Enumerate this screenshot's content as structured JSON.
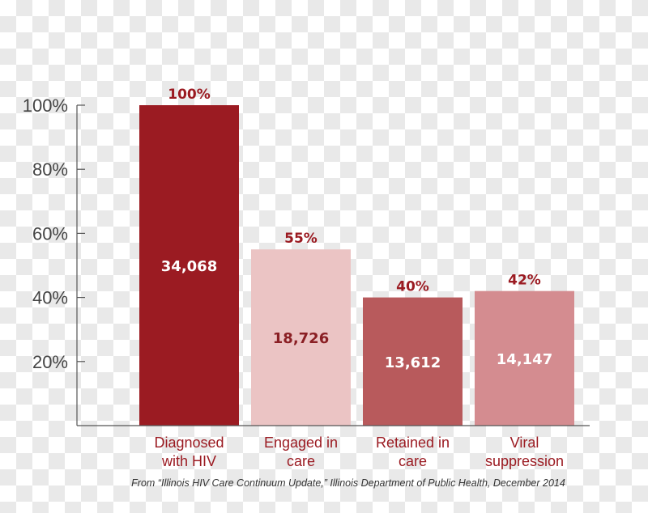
{
  "chart_data": {
    "type": "bar",
    "title": "",
    "xlabel": "",
    "ylabel": "",
    "ylim": [
      0,
      100
    ],
    "yticks": [
      20,
      40,
      60,
      80,
      100
    ],
    "ytick_labels": [
      "20%",
      "40%",
      "60%",
      "80%",
      "100%"
    ],
    "categories": [
      [
        "Diagnosed",
        "with HIV"
      ],
      [
        "Engaged in",
        "care"
      ],
      [
        "Retained in",
        "care"
      ],
      [
        "Viral",
        "suppression"
      ]
    ],
    "values": [
      100,
      55,
      40,
      42
    ],
    "value_labels": [
      "100%",
      "55%",
      "40%",
      "42%"
    ],
    "counts": [
      "34,068",
      "18,726",
      "13,612",
      "14,147"
    ],
    "colors": {
      "bars": [
        "#9b1b22",
        "#ebc4c4",
        "#b85a5c",
        "#d48c90"
      ],
      "count_text": [
        "#ffffff",
        "#8a1f24",
        "#ffffff",
        "#ffffff"
      ],
      "label_text": "#9b1b22",
      "axis": "#555555"
    }
  },
  "source_note": "From “Illinois HIV Care Continuum Update,” Illinois Department of Public Health, December 2014"
}
